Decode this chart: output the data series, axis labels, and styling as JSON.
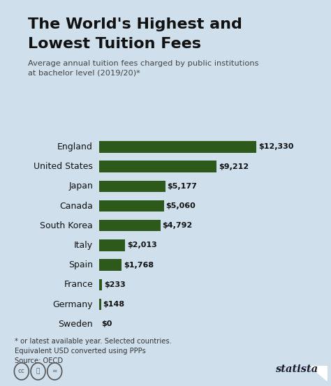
{
  "title_line1": "The World's Highest and",
  "title_line2": "Lowest Tuition Fees",
  "subtitle": "Average annual tuition fees charged by public institutions\nat bachelor level (2019/20)*",
  "countries": [
    "England",
    "United States",
    "Japan",
    "Canada",
    "South Korea",
    "Italy",
    "Spain",
    "France",
    "Germany",
    "Sweden"
  ],
  "values": [
    12330,
    9212,
    5177,
    5060,
    4792,
    2013,
    1768,
    233,
    148,
    0
  ],
  "labels": [
    "$12,330",
    "$9,212",
    "$5,177",
    "$5,060",
    "$4,792",
    "$2,013",
    "$1,768",
    "$233",
    "$148",
    "$0"
  ],
  "bar_color": "#2d5a1b",
  "background_color": "#cfe0ec",
  "title_color": "#111111",
  "subtitle_color": "#444444",
  "footnote_line1": "* or latest available year. Selected countries.",
  "footnote_line2": "Equivalent USD converted using PPPs",
  "footnote_line3": "Source: OECD",
  "footnote_color": "#333333",
  "statista_color": "#1a1a2e",
  "accent_color": "#2d5a1b",
  "xlim_max": 13500,
  "bar_gap": 150
}
